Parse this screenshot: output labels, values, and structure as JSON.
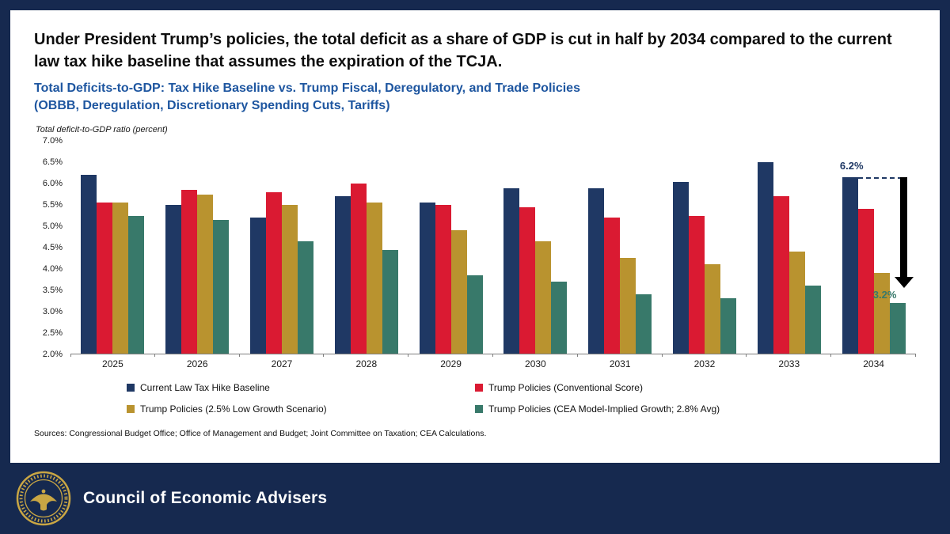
{
  "header": {
    "title": "Under President Trump’s policies, the total deficit as a share of GDP is cut in half by 2034 compared to the current law tax hike baseline that assumes the expiration of the TCJA.",
    "subtitle_line1": "Total Deficits-to-GDP: Tax Hike Baseline vs. Trump Fiscal, Deregulatory, and Trade Policies",
    "subtitle_line2": "(OBBB, Deregulation, Discretionary Spending Cuts, Tariffs)"
  },
  "chart_data": {
    "type": "bar",
    "title": "Total Deficits-to-GDP: Tax Hike Baseline vs. Trump Fiscal, Deregulatory, and Trade Policies (OBBB, Deregulation, Discretionary Spending Cuts, Tariffs)",
    "ylabel": "Total deficit-to-GDP ratio (percent)",
    "ylim": [
      2.0,
      7.0
    ],
    "yticks": [
      "7.0%",
      "6.5%",
      "6.0%",
      "5.5%",
      "5.0%",
      "4.5%",
      "4.0%",
      "3.5%",
      "3.0%",
      "2.5%",
      "2.0%"
    ],
    "categories": [
      "2025",
      "2026",
      "2027",
      "2028",
      "2029",
      "2030",
      "2031",
      "2032",
      "2033",
      "2034"
    ],
    "series": [
      {
        "name": "Current Law Tax Hike Baseline",
        "color": "#1f3864",
        "values": [
          6.2,
          5.5,
          5.2,
          5.7,
          5.55,
          5.9,
          5.9,
          6.05,
          6.5,
          6.15
        ]
      },
      {
        "name": "Trump Policies (Conventional Score)",
        "color": "#da1a32",
        "values": [
          5.55,
          5.85,
          5.8,
          6.0,
          5.5,
          5.45,
          5.2,
          5.25,
          5.7,
          5.4
        ]
      },
      {
        "name": "Trump Policies (2.5% Low Growth Scenario)",
        "color": "#b9932f",
        "values": [
          5.55,
          5.75,
          5.5,
          5.55,
          4.9,
          4.65,
          4.25,
          4.1,
          4.4,
          3.9
        ]
      },
      {
        "name": "Trump Policies (CEA Model-Implied Growth; 2.8% Avg)",
        "color": "#38796a",
        "values": [
          5.25,
          5.15,
          4.65,
          4.45,
          3.85,
          3.7,
          3.4,
          3.3,
          3.6,
          3.2
        ]
      }
    ],
    "legend_position": "bottom",
    "grid": false,
    "annotations": {
      "baseline_end_label": "6.2%",
      "policy_end_label": "3.2%"
    }
  },
  "footer": {
    "sources": "Sources: Congressional Budget Office; Office of Management and Budget; Joint Committee on Taxation; CEA Calculations.",
    "org": "Council of Economic Advisers"
  }
}
